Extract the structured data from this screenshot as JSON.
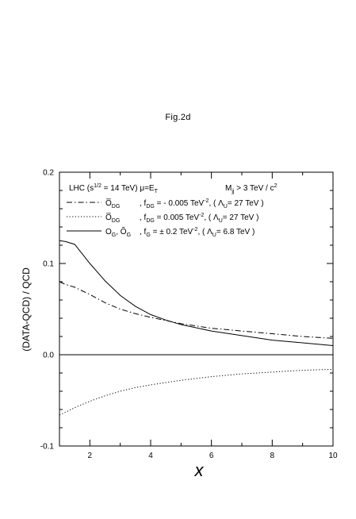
{
  "figure_label": "Fig.2d",
  "chart_data": {
    "type": "line",
    "title": "",
    "xlabel": "x",
    "ylabel": "(DATA-QCD) / QCD",
    "xlim": [
      1,
      10
    ],
    "ylim": [
      -0.1,
      0.2
    ],
    "x_ticks": [
      2,
      4,
      6,
      8,
      10
    ],
    "y_ticks": [
      -0.1,
      0.0,
      0.1,
      0.2
    ],
    "y_tick_labels": [
      "-0.1",
      "0.0",
      "0.1",
      "0.2"
    ],
    "zero_line": true,
    "grid": false,
    "legend_placement": "top-left",
    "header": {
      "main": "LHC  (s",
      "sup": "1/2",
      "rest": " = 14 TeV)    μ=E",
      "sub": "T",
      "cut_main": "M",
      "cut_sub": "jj",
      "cut_rest": " > 3 TeV / c",
      "cut_sup": "2"
    },
    "series": [
      {
        "style": "dashdot",
        "legend": {
          "op": "O̅",
          "op_sub": "DG",
          "coupling": ",   f",
          "coupling_sub": "DG",
          "value": " = - 0.005 TeV",
          "value_sup": "-2",
          "scale": ",  ( Λ",
          "scale_sub": "U",
          "scale_rest": "= 27 TeV )"
        },
        "x": [
          1,
          1.2,
          1.5,
          2,
          2.5,
          3,
          3.5,
          4,
          5,
          6,
          7,
          8,
          9,
          10
        ],
        "values": [
          0.08,
          0.077,
          0.074,
          0.066,
          0.057,
          0.05,
          0.045,
          0.041,
          0.034,
          0.029,
          0.026,
          0.023,
          0.02,
          0.018
        ]
      },
      {
        "style": "dotted",
        "legend": {
          "op": "O̅",
          "op_sub": "DG",
          "coupling": ",   f",
          "coupling_sub": "DG",
          "value": " =  0.005 TeV",
          "value_sup": "-2",
          "scale": ",  ( Λ",
          "scale_sub": "U",
          "scale_rest": "= 27 TeV )"
        },
        "x": [
          1,
          1.2,
          1.5,
          2,
          2.5,
          3,
          3.5,
          4,
          5,
          6,
          7,
          8,
          9,
          10
        ],
        "values": [
          -0.066,
          -0.063,
          -0.058,
          -0.051,
          -0.045,
          -0.04,
          -0.036,
          -0.033,
          -0.028,
          -0.024,
          -0.021,
          -0.019,
          -0.017,
          -0.016
        ]
      },
      {
        "style": "solid",
        "legend": {
          "op": "O",
          "op_sub": "G",
          "op2": ", Õ",
          "op2_sub": "G",
          "coupling": ",   f",
          "coupling_sub": "G",
          "value": "  = ± 0.2  TeV",
          "value_sup": "-2",
          "scale": ",  ( Λ",
          "scale_sub": "U",
          "scale_rest": "= 6.8 TeV )"
        },
        "x": [
          1,
          1.2,
          1.5,
          2,
          2.5,
          3,
          3.5,
          4,
          4.5,
          5,
          6,
          7,
          8,
          9,
          10
        ],
        "values": [
          0.125,
          0.124,
          0.121,
          0.1,
          0.081,
          0.065,
          0.053,
          0.044,
          0.038,
          0.033,
          0.026,
          0.021,
          0.016,
          0.013,
          0.01
        ]
      }
    ]
  }
}
